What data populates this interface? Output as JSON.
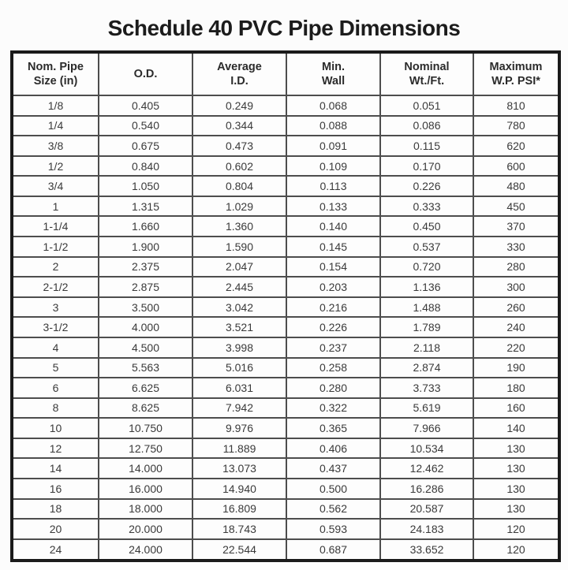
{
  "page": {
    "title": "Schedule 40 PVC Pipe Dimensions"
  },
  "colors": {
    "background": "#fcfcfc",
    "title_text": "#1c1c1c",
    "cell_text": "#3a3a3a",
    "header_text": "#2b2b2b",
    "outer_border": "#1a1a1a",
    "inner_border": "#4d4d4d"
  },
  "table": {
    "headers": [
      "Nom. Pipe\nSize (in)",
      "O.D.",
      "Average\nI.D.",
      "Min.\nWall",
      "Nominal\nWt./Ft.",
      "Maximum\nW.P. PSI*"
    ],
    "rows": [
      [
        "1/8",
        "0.405",
        "0.249",
        "0.068",
        "0.051",
        "810"
      ],
      [
        "1/4",
        "0.540",
        "0.344",
        "0.088",
        "0.086",
        "780"
      ],
      [
        "3/8",
        "0.675",
        "0.473",
        "0.091",
        "0.115",
        "620"
      ],
      [
        "1/2",
        "0.840",
        "0.602",
        "0.109",
        "0.170",
        "600"
      ],
      [
        "3/4",
        "1.050",
        "0.804",
        "0.113",
        "0.226",
        "480"
      ],
      [
        "1",
        "1.315",
        "1.029",
        "0.133",
        "0.333",
        "450"
      ],
      [
        "1-1/4",
        "1.660",
        "1.360",
        "0.140",
        "0.450",
        "370"
      ],
      [
        "1-1/2",
        "1.900",
        "1.590",
        "0.145",
        "0.537",
        "330"
      ],
      [
        "2",
        "2.375",
        "2.047",
        "0.154",
        "0.720",
        "280"
      ],
      [
        "2-1/2",
        "2.875",
        "2.445",
        "0.203",
        "1.136",
        "300"
      ],
      [
        "3",
        "3.500",
        "3.042",
        "0.216",
        "1.488",
        "260"
      ],
      [
        "3-1/2",
        "4.000",
        "3.521",
        "0.226",
        "1.789",
        "240"
      ],
      [
        "4",
        "4.500",
        "3.998",
        "0.237",
        "2.118",
        "220"
      ],
      [
        "5",
        "5.563",
        "5.016",
        "0.258",
        "2.874",
        "190"
      ],
      [
        "6",
        "6.625",
        "6.031",
        "0.280",
        "3.733",
        "180"
      ],
      [
        "8",
        "8.625",
        "7.942",
        "0.322",
        "5.619",
        "160"
      ],
      [
        "10",
        "10.750",
        "9.976",
        "0.365",
        "7.966",
        "140"
      ],
      [
        "12",
        "12.750",
        "11.889",
        "0.406",
        "10.534",
        "130"
      ],
      [
        "14",
        "14.000",
        "13.073",
        "0.437",
        "12.462",
        "130"
      ],
      [
        "16",
        "16.000",
        "14.940",
        "0.500",
        "16.286",
        "130"
      ],
      [
        "18",
        "18.000",
        "16.809",
        "0.562",
        "20.587",
        "130"
      ],
      [
        "20",
        "20.000",
        "18.743",
        "0.593",
        "24.183",
        "120"
      ],
      [
        "24",
        "24.000",
        "22.544",
        "0.687",
        "33.652",
        "120"
      ]
    ]
  },
  "chart_data": {
    "type": "table",
    "title": "Schedule 40 PVC Pipe Dimensions",
    "columns": [
      "Nom. Pipe Size (in)",
      "O.D.",
      "Average I.D.",
      "Min. Wall",
      "Nominal Wt./Ft.",
      "Maximum W.P. PSI*"
    ],
    "rows": [
      [
        "1/8",
        0.405,
        0.249,
        0.068,
        0.051,
        810
      ],
      [
        "1/4",
        0.54,
        0.344,
        0.088,
        0.086,
        780
      ],
      [
        "3/8",
        0.675,
        0.473,
        0.091,
        0.115,
        620
      ],
      [
        "1/2",
        0.84,
        0.602,
        0.109,
        0.17,
        600
      ],
      [
        "3/4",
        1.05,
        0.804,
        0.113,
        0.226,
        480
      ],
      [
        "1",
        1.315,
        1.029,
        0.133,
        0.333,
        450
      ],
      [
        "1-1/4",
        1.66,
        1.36,
        0.14,
        0.45,
        370
      ],
      [
        "1-1/2",
        1.9,
        1.59,
        0.145,
        0.537,
        330
      ],
      [
        "2",
        2.375,
        2.047,
        0.154,
        0.72,
        280
      ],
      [
        "2-1/2",
        2.875,
        2.445,
        0.203,
        1.136,
        300
      ],
      [
        "3",
        3.5,
        3.042,
        0.216,
        1.488,
        260
      ],
      [
        "3-1/2",
        4.0,
        3.521,
        0.226,
        1.789,
        240
      ],
      [
        "4",
        4.5,
        3.998,
        0.237,
        2.118,
        220
      ],
      [
        "5",
        5.563,
        5.016,
        0.258,
        2.874,
        190
      ],
      [
        "6",
        6.625,
        6.031,
        0.28,
        3.733,
        180
      ],
      [
        "8",
        8.625,
        7.942,
        0.322,
        5.619,
        160
      ],
      [
        "10",
        10.75,
        9.976,
        0.365,
        7.966,
        140
      ],
      [
        "12",
        12.75,
        11.889,
        0.406,
        10.534,
        130
      ],
      [
        "14",
        14.0,
        13.073,
        0.437,
        12.462,
        130
      ],
      [
        "16",
        16.0,
        14.94,
        0.5,
        16.286,
        130
      ],
      [
        "18",
        18.0,
        16.809,
        0.562,
        20.587,
        130
      ],
      [
        "20",
        20.0,
        18.743,
        0.593,
        24.183,
        120
      ],
      [
        "24",
        24.0,
        22.544,
        0.687,
        33.652,
        120
      ]
    ]
  }
}
